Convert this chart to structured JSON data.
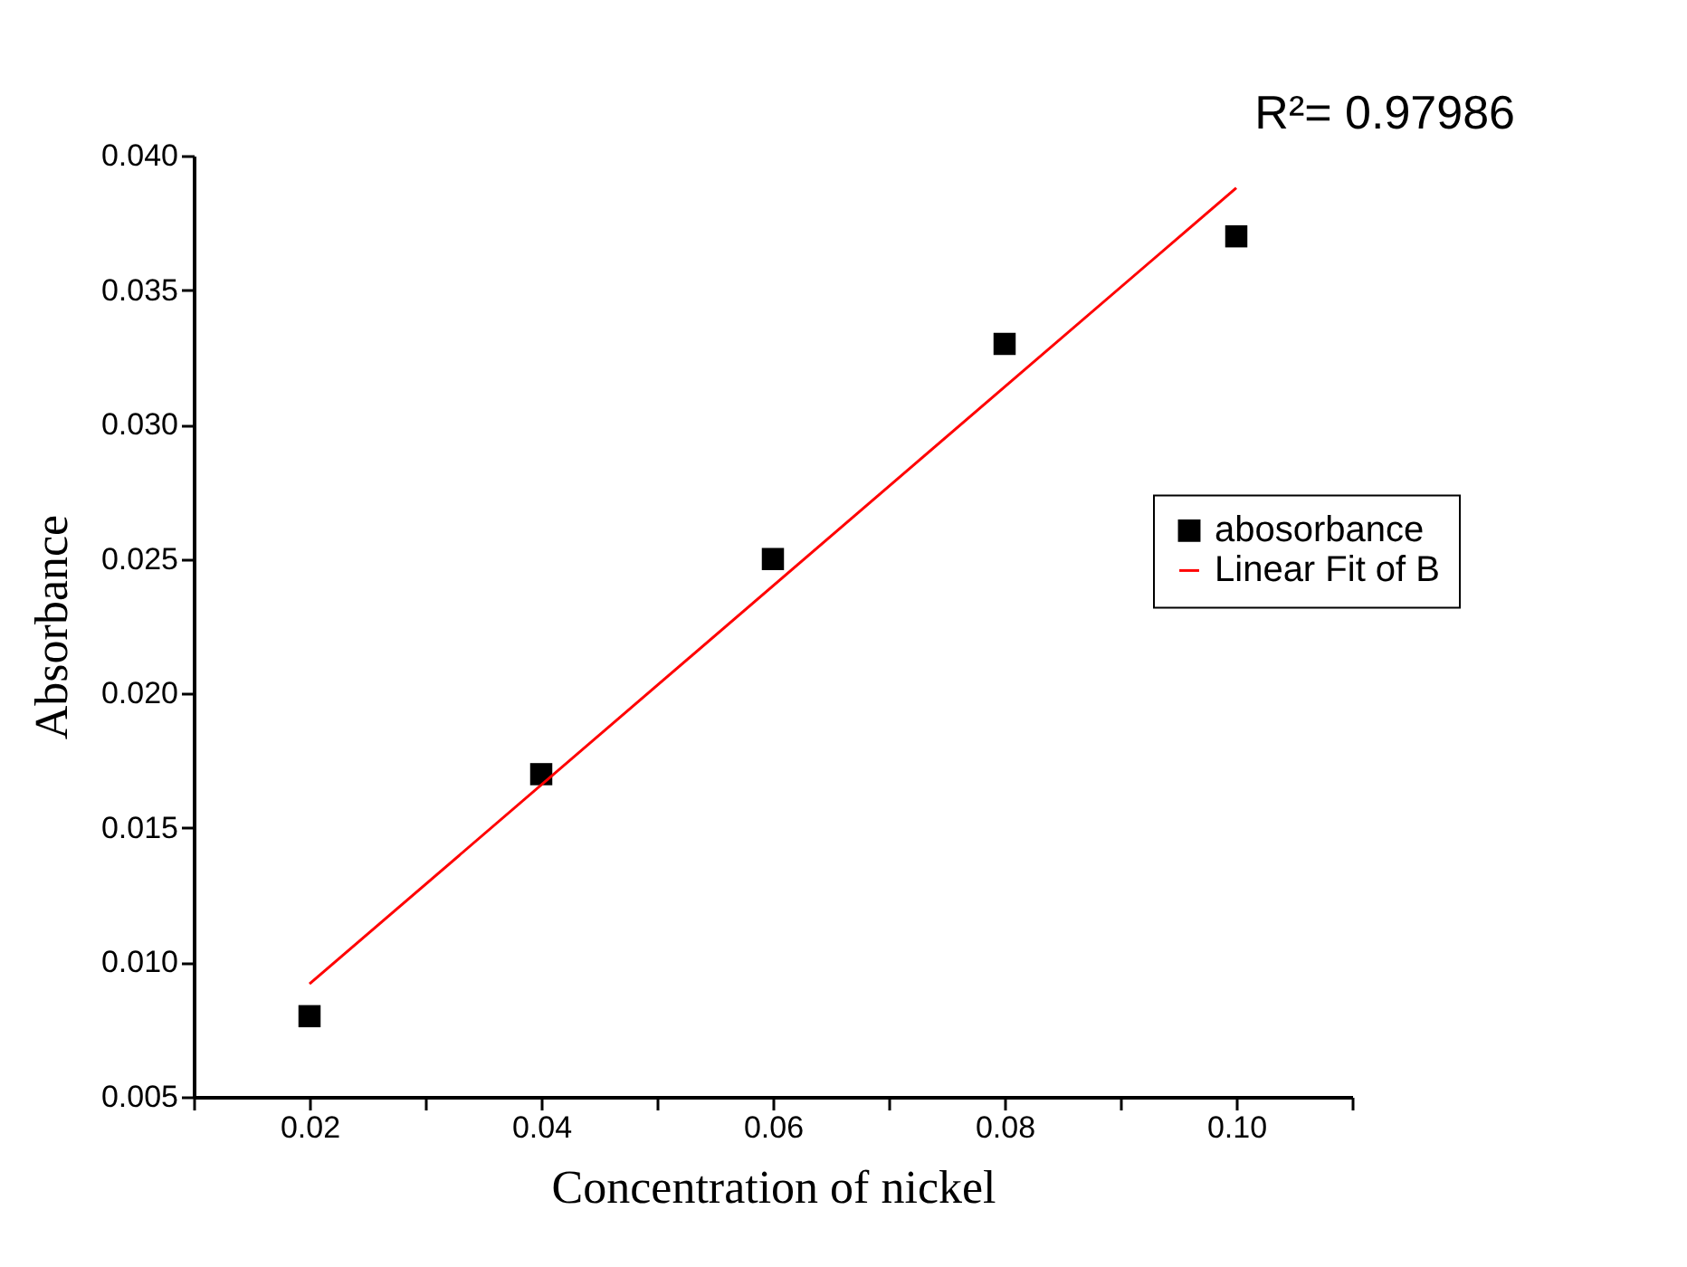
{
  "chart_data": {
    "type": "scatter",
    "xlabel": "Concentration of nickel",
    "ylabel": "Absorbance",
    "annotations": [
      "R²= 0.97986"
    ],
    "x": [
      0.02,
      0.04,
      0.06,
      0.08,
      0.1
    ],
    "series": [
      {
        "name": "abosorbance",
        "color": "#000000",
        "marker": "square",
        "values": [
          0.008,
          0.017,
          0.025,
          0.033,
          0.037
        ]
      },
      {
        "name": "Linear Fit of B",
        "type": "line",
        "color": "#ff0000",
        "line_style": "solid",
        "x": [
          0.02,
          0.1
        ],
        "values": [
          0.0092,
          0.0388
        ]
      }
    ],
    "xlim": [
      0.01,
      0.11
    ],
    "xticks": [
      {
        "value": 0.01,
        "label": null
      },
      {
        "value": 0.02,
        "label": "0.02"
      },
      {
        "value": 0.03,
        "label": null
      },
      {
        "value": 0.04,
        "label": "0.04"
      },
      {
        "value": 0.05,
        "label": null
      },
      {
        "value": 0.06,
        "label": "0.06"
      },
      {
        "value": 0.07,
        "label": null
      },
      {
        "value": 0.08,
        "label": "0.08"
      },
      {
        "value": 0.09,
        "label": null
      },
      {
        "value": 0.1,
        "label": "0.10"
      },
      {
        "value": 0.11,
        "label": null
      }
    ],
    "ylim": [
      0.005,
      0.04
    ],
    "yticks": [
      {
        "value": 0.005,
        "label": "0.005"
      },
      {
        "value": 0.01,
        "label": "0.010"
      },
      {
        "value": 0.015,
        "label": "0.015"
      },
      {
        "value": 0.02,
        "label": "0.020"
      },
      {
        "value": 0.025,
        "label": "0.025"
      },
      {
        "value": 0.03,
        "label": "0.030"
      },
      {
        "value": 0.035,
        "label": "0.035"
      },
      {
        "value": 0.04,
        "label": "0.040"
      }
    ],
    "grid": false,
    "legend": "right"
  }
}
